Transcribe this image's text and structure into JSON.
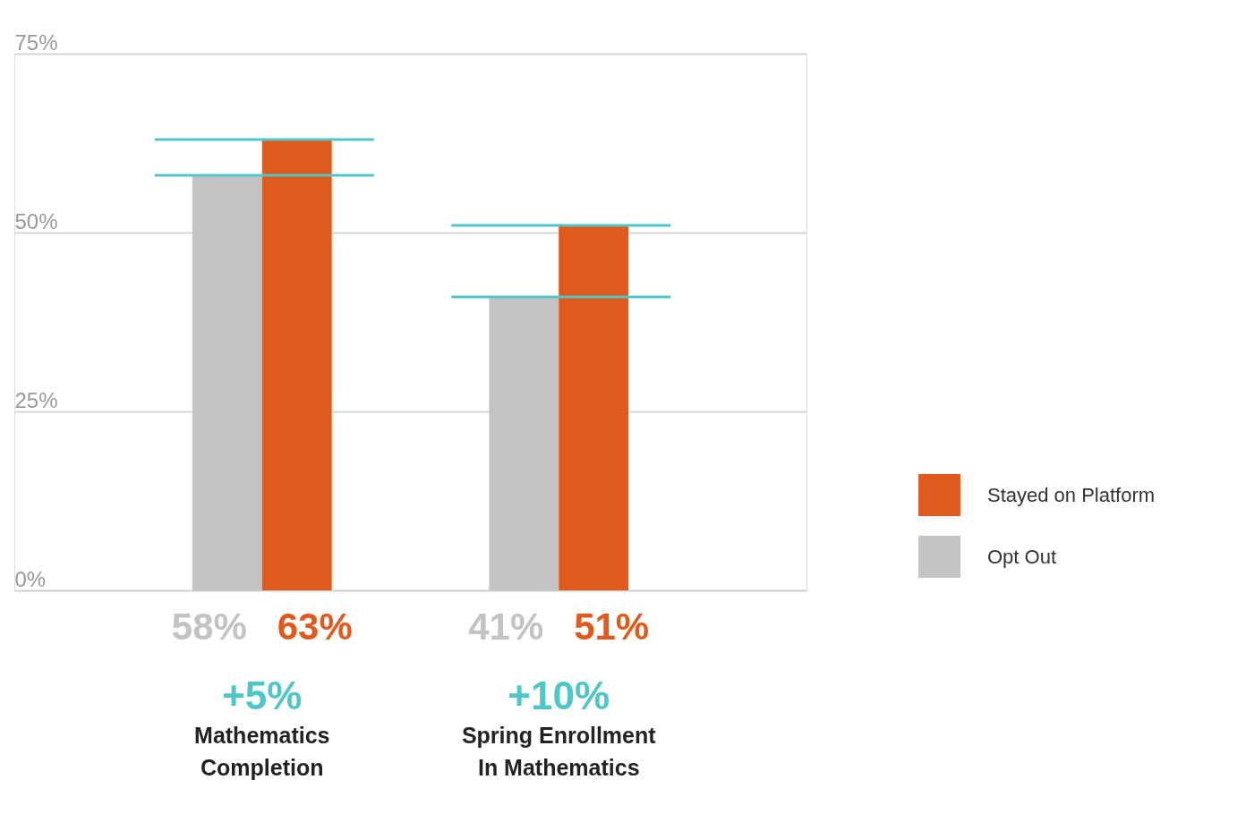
{
  "chart_data": {
    "type": "bar",
    "categories": [
      "Mathematics Completion",
      "Spring Enrollment In Mathematics"
    ],
    "series": [
      {
        "name": "Opt Out",
        "color": "#c4c3c1",
        "values": [
          58,
          41
        ]
      },
      {
        "name": "Stayed on Platform",
        "color": "#e05a1e",
        "values": [
          63,
          51
        ]
      }
    ],
    "ylim": [
      0,
      75
    ],
    "yticks": [
      {
        "value": 0,
        "label": "0%"
      },
      {
        "value": 25,
        "label": "25%"
      },
      {
        "value": 50,
        "label": "50%"
      },
      {
        "value": 75,
        "label": "75%"
      }
    ],
    "grid": "y",
    "legend": "right",
    "value_labels": [
      [
        "58%",
        "41%"
      ],
      [
        "63%",
        "51%"
      ]
    ],
    "ref_lines": [
      {
        "axis": "y",
        "value": 63,
        "color": "#4fc6c8"
      },
      {
        "axis": "y",
        "value": 58,
        "color": "#4fc6c8"
      },
      {
        "axis": "y",
        "value": 51,
        "color": "#4fc6c8"
      },
      {
        "axis": "y",
        "value": 41,
        "color": "#4fc6c8"
      }
    ],
    "annotations": [
      "+5%",
      "+10%"
    ]
  }
}
